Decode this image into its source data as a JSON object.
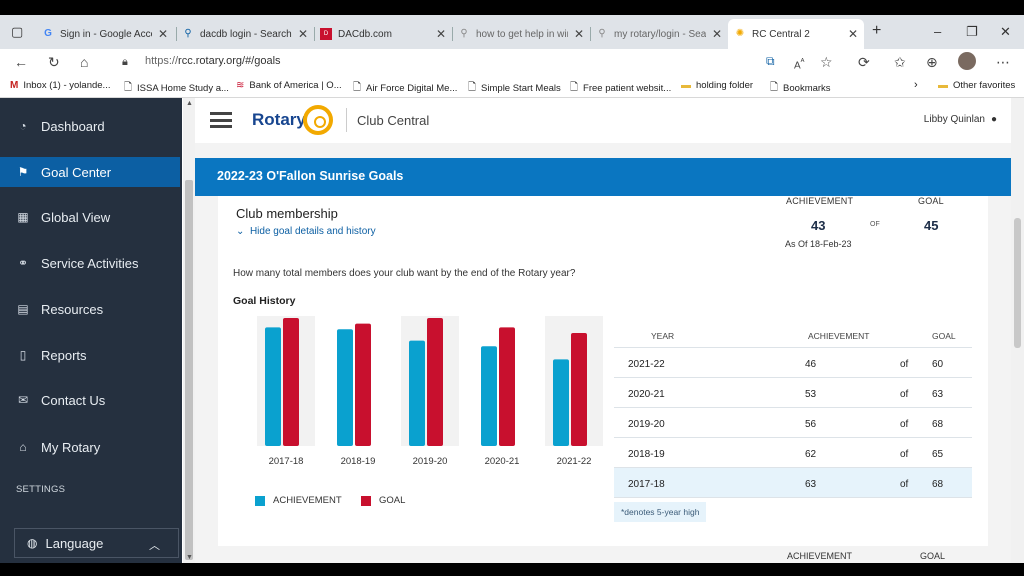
{
  "browser": {
    "tabs": [
      {
        "label": "Sign in - Google Acco",
        "icon": "google-icon"
      },
      {
        "label": "dacdb login - Search",
        "icon": "search-icon"
      },
      {
        "label": "DACdb.com",
        "icon": "dac-icon"
      },
      {
        "label": "how to get help in win",
        "icon": "search-icon"
      },
      {
        "label": "my rotary/login - Sear",
        "icon": "search-icon"
      },
      {
        "label": "RC Central 2",
        "icon": "rotary-icon"
      }
    ],
    "url_prefix": "https://",
    "url_rest": "rcc.rotary.org/#/goals",
    "bookmarks": [
      {
        "label": "Inbox (1) - yolande...",
        "icon": "gmail-icon"
      },
      {
        "label": "ISSA Home Study a...",
        "icon": "page-icon"
      },
      {
        "label": "Bank of America | O...",
        "icon": "bofa-icon"
      },
      {
        "label": "Air Force Digital Me...",
        "icon": "page-icon"
      },
      {
        "label": "Simple Start Meals",
        "icon": "page-icon"
      },
      {
        "label": "Free patient websit...",
        "icon": "page-icon"
      },
      {
        "label": "holding folder",
        "icon": "folder-icon"
      },
      {
        "label": "Bookmarks",
        "icon": "page-icon"
      },
      {
        "label": "Other favorites",
        "icon": "folder-icon"
      }
    ]
  },
  "sidebar": {
    "items": [
      {
        "label": "Dashboard",
        "icon": "dashboard-icon"
      },
      {
        "label": "Goal Center",
        "icon": "flag-icon"
      },
      {
        "label": "Global View",
        "icon": "grid-icon"
      },
      {
        "label": "Service Activities",
        "icon": "handshake-icon"
      },
      {
        "label": "Resources",
        "icon": "book-icon"
      },
      {
        "label": "Reports",
        "icon": "report-icon"
      },
      {
        "label": "Contact Us",
        "icon": "envelope-icon"
      },
      {
        "label": "My Rotary",
        "icon": "home-icon"
      }
    ],
    "settings_label": "SETTINGS",
    "language_label": "Language"
  },
  "header": {
    "logo_text": "Rotary",
    "app_name": "Club Central",
    "user_name": "Libby Quinlan"
  },
  "goal_bar_title": "2022-23 O'Fallon Sunrise Goals",
  "card": {
    "title": "Club membership",
    "toggle_label": "Hide goal details and history",
    "achievement_label": "ACHIEVEMENT",
    "goal_label": "GOAL",
    "of_label": "OF",
    "achievement_value": "43",
    "goal_value": "45",
    "as_of": "As Of 18-Feb-23",
    "question": "How many total members does your club want by the end of the Rotary year?",
    "history_title": "Goal History",
    "legend_achievement": "ACHIEVEMENT",
    "legend_goal": "GOAL",
    "note": "*denotes 5-year high"
  },
  "table": {
    "headers": {
      "year": "YEAR",
      "achievement": "ACHIEVEMENT",
      "goal": "GOAL"
    },
    "rows": [
      {
        "year": "2021-22",
        "achievement": "46",
        "of": "of",
        "goal": "60"
      },
      {
        "year": "2020-21",
        "achievement": "53",
        "of": "of",
        "goal": "63"
      },
      {
        "year": "2019-20",
        "achievement": "56",
        "of": "of",
        "goal": "68"
      },
      {
        "year": "2018-19",
        "achievement": "62",
        "of": "of",
        "goal": "65"
      },
      {
        "year": "2017-18",
        "achievement": "63",
        "of": "of",
        "goal": "68"
      }
    ]
  },
  "next_section": {
    "achievement_label": "ACHIEVEMENT",
    "goal_label": "GOAL"
  },
  "colors": {
    "achievement": "#0aa1cf",
    "goal": "#c8102e",
    "highlight": "#f2f2f2",
    "accent": "#0a76c1"
  },
  "chart_data": {
    "type": "bar",
    "categories": [
      "2017-18",
      "2018-19",
      "2019-20",
      "2020-21",
      "2021-22"
    ],
    "series": [
      {
        "name": "ACHIEVEMENT",
        "values": [
          63,
          62,
          56,
          53,
          46
        ]
      },
      {
        "name": "GOAL",
        "values": [
          68,
          65,
          68,
          63,
          60
        ]
      }
    ],
    "highlighted_categories": [
      "2017-18",
      "2019-20",
      "2021-22"
    ],
    "ylim": [
      0,
      68
    ],
    "legend": "bottom-left",
    "grid": false
  }
}
